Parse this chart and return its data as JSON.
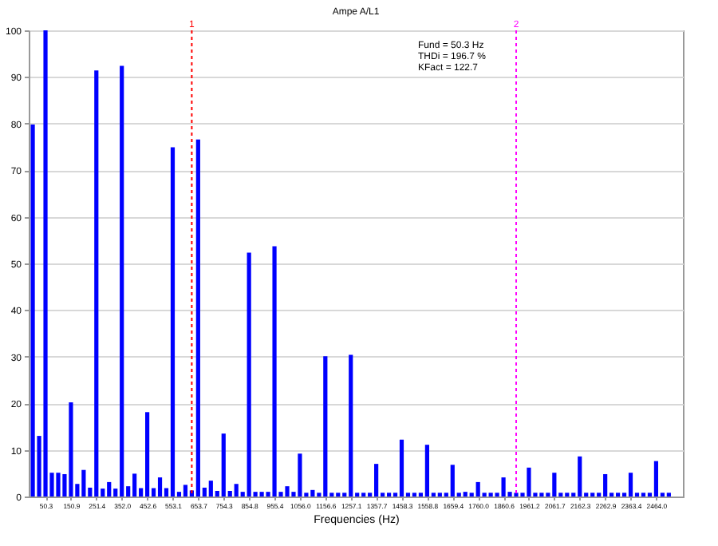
{
  "chart_data": {
    "type": "bar",
    "title": "Ampe A/L1",
    "xlabel": "Frequencies (Hz)",
    "annotations": [
      "Fund  =  50.3 Hz",
      "THDi = 196.7 %",
      "KFact = 122.7",
      {
        "text": "1",
        "x": 628.6,
        "y": 100
      },
      {
        "text": "2",
        "x": 1910.9,
        "y": 100
      }
    ],
    "x": [
      0,
      25.1,
      50.3,
      75.4,
      100.6,
      125.7,
      150.9,
      176.0,
      201.2,
      226.3,
      251.4,
      276.6,
      301.7,
      326.9,
      352.0,
      377.2,
      402.3,
      427.5,
      452.6,
      477.7,
      502.9,
      528.0,
      553.2,
      578.3,
      603.5,
      628.6,
      653.7,
      678.9,
      704.0,
      729.2,
      754.3,
      779.5,
      804.6,
      829.8,
      854.9,
      880.0,
      905.2,
      930.3,
      955.5,
      980.6,
      1005.8,
      1030.9,
      1056.0,
      1081.2,
      1106.3,
      1131.5,
      1156.6,
      1181.8,
      1206.9,
      1232.1,
      1257.2,
      1282.3,
      1307.5,
      1332.6,
      1357.8,
      1382.9,
      1408.1,
      1433.2,
      1458.3,
      1483.5,
      1508.6,
      1533.8,
      1558.9,
      1584.1,
      1609.2,
      1634.4,
      1659.5,
      1684.6,
      1709.8,
      1734.9,
      1760.1,
      1785.2,
      1810.4,
      1835.5,
      1860.7,
      1885.8,
      1910.9,
      1936.1,
      1961.2,
      1986.4,
      2011.5,
      2036.7,
      2061.8,
      2086.9,
      2112.1,
      2137.2,
      2162.4,
      2187.5,
      2212.7,
      2237.8,
      2263.0,
      2288.1,
      2313.2,
      2338.4,
      2363.5,
      2388.7,
      2413.8,
      2439.0,
      2464.1,
      2489.3,
      2514.4
    ],
    "values": [
      79.8,
      13,
      100,
      5.1,
      5.1,
      4.8,
      20.2,
      2.7,
      5.7,
      1.9,
      91.4,
      1.7,
      3.1,
      1.7,
      92.4,
      2.2,
      4.9,
      1.8,
      18.1,
      1.8,
      4.1,
      1.8,
      74.9,
      1,
      2.5,
      1.3,
      76.6,
      1.9,
      3.4,
      1.2,
      13.5,
      1.2,
      2.7,
      1,
      52.3,
      1,
      1,
      1,
      53.7,
      1,
      2.2,
      1,
      9.2,
      0.8,
      1.4,
      0.8,
      30.1,
      0.8,
      0.8,
      0.8,
      30.4,
      0.8,
      0.8,
      0.8,
      7,
      0.8,
      0.8,
      0.8,
      12.2,
      0.8,
      0.8,
      0.8,
      11.1,
      0.8,
      0.8,
      0.8,
      6.8,
      0.8,
      1,
      0.8,
      3.1,
      0.8,
      0.8,
      0.8,
      4.1,
      1,
      0.8,
      0.8,
      6.2,
      0.8,
      0.8,
      0.8,
      5.1,
      0.8,
      0.8,
      0.8,
      8.6,
      0.8,
      0.8,
      0.8,
      4.8,
      0.8,
      0.8,
      0.8,
      5.1,
      0.8,
      0.8,
      0.8,
      7.6,
      0.8,
      0.8
    ],
    "color": "#0000ff",
    "xlim": [
      -16,
      2570
    ],
    "xticks": [
      50.3,
      150.9,
      251.4,
      {
        "value": 352,
        "label": "352.0"
      },
      452.6,
      553.1,
      653.7,
      754.3,
      854.8,
      955.4,
      {
        "value": 1056,
        "label": "1056.0"
      },
      1156.6,
      1257.1,
      1357.7,
      1458.3,
      1558.8,
      1659.4,
      {
        "value": 1760,
        "label": "1760.0"
      },
      1860.6,
      1961.2,
      2061.7,
      2162.3,
      2262.9,
      2363.4,
      {
        "value": 2464,
        "label": "2464.0"
      }
    ],
    "ylim": [
      0,
      100
    ],
    "yticks": [
      0,
      10,
      20,
      30,
      40,
      50,
      60,
      70,
      80,
      90,
      100
    ],
    "grid": "y",
    "ref_lines": [
      {
        "axis": "x",
        "value": 628.6,
        "color": "#ff0000",
        "line_style": "dotted"
      },
      {
        "axis": "x",
        "value": 1910.9,
        "color": "#ff00ff",
        "line_style": "dotted"
      }
    ]
  }
}
